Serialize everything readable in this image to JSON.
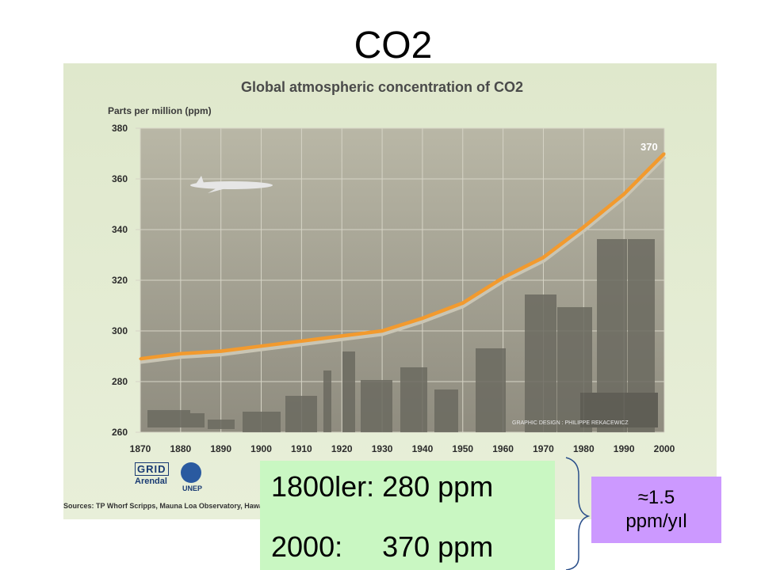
{
  "slide": {
    "title": "CO2"
  },
  "chart_data": {
    "type": "line",
    "title": "Global atmospheric concentration of CO2",
    "ylabel": "Parts per million (ppm)",
    "xlabel": "",
    "x": [
      1870,
      1880,
      1890,
      1900,
      1910,
      1920,
      1930,
      1940,
      1950,
      1960,
      1970,
      1980,
      1990,
      2000
    ],
    "xticks": [
      "1870",
      "1880",
      "1890",
      "1900",
      "1910",
      "1920",
      "1930",
      "1940",
      "1950",
      "1960",
      "1970",
      "1980",
      "1990",
      "2000"
    ],
    "yticks": [
      "260",
      "280",
      "300",
      "320",
      "340",
      "360",
      "380"
    ],
    "series": [
      {
        "values": [
          289,
          291,
          292,
          294,
          296,
          298,
          300,
          305,
          311,
          321,
          329,
          341,
          354,
          370
        ]
      }
    ],
    "xlim": [
      1870,
      2000
    ],
    "ylim": [
      260,
      380
    ],
    "grid": true,
    "annotations": [
      {
        "x": 2000,
        "y": 370,
        "text": "370"
      }
    ],
    "line_color": "#f29a2e",
    "credit": "GRAPHIC DESIGN : PHILIPPE REKACEWICZ"
  },
  "logos": {
    "grid": "GRID",
    "arendal": "Arendal",
    "unep": "UNEP"
  },
  "sources": "Sources: TP Whorf  Scripps, Mauna Loa Observatory, Hawaii, ins",
  "info": {
    "line1": "1800ler: 280 ppm",
    "line2": "2000:     370 ppm"
  },
  "rate": {
    "line1": "≈1.5",
    "line2": "ppm/yıl"
  }
}
